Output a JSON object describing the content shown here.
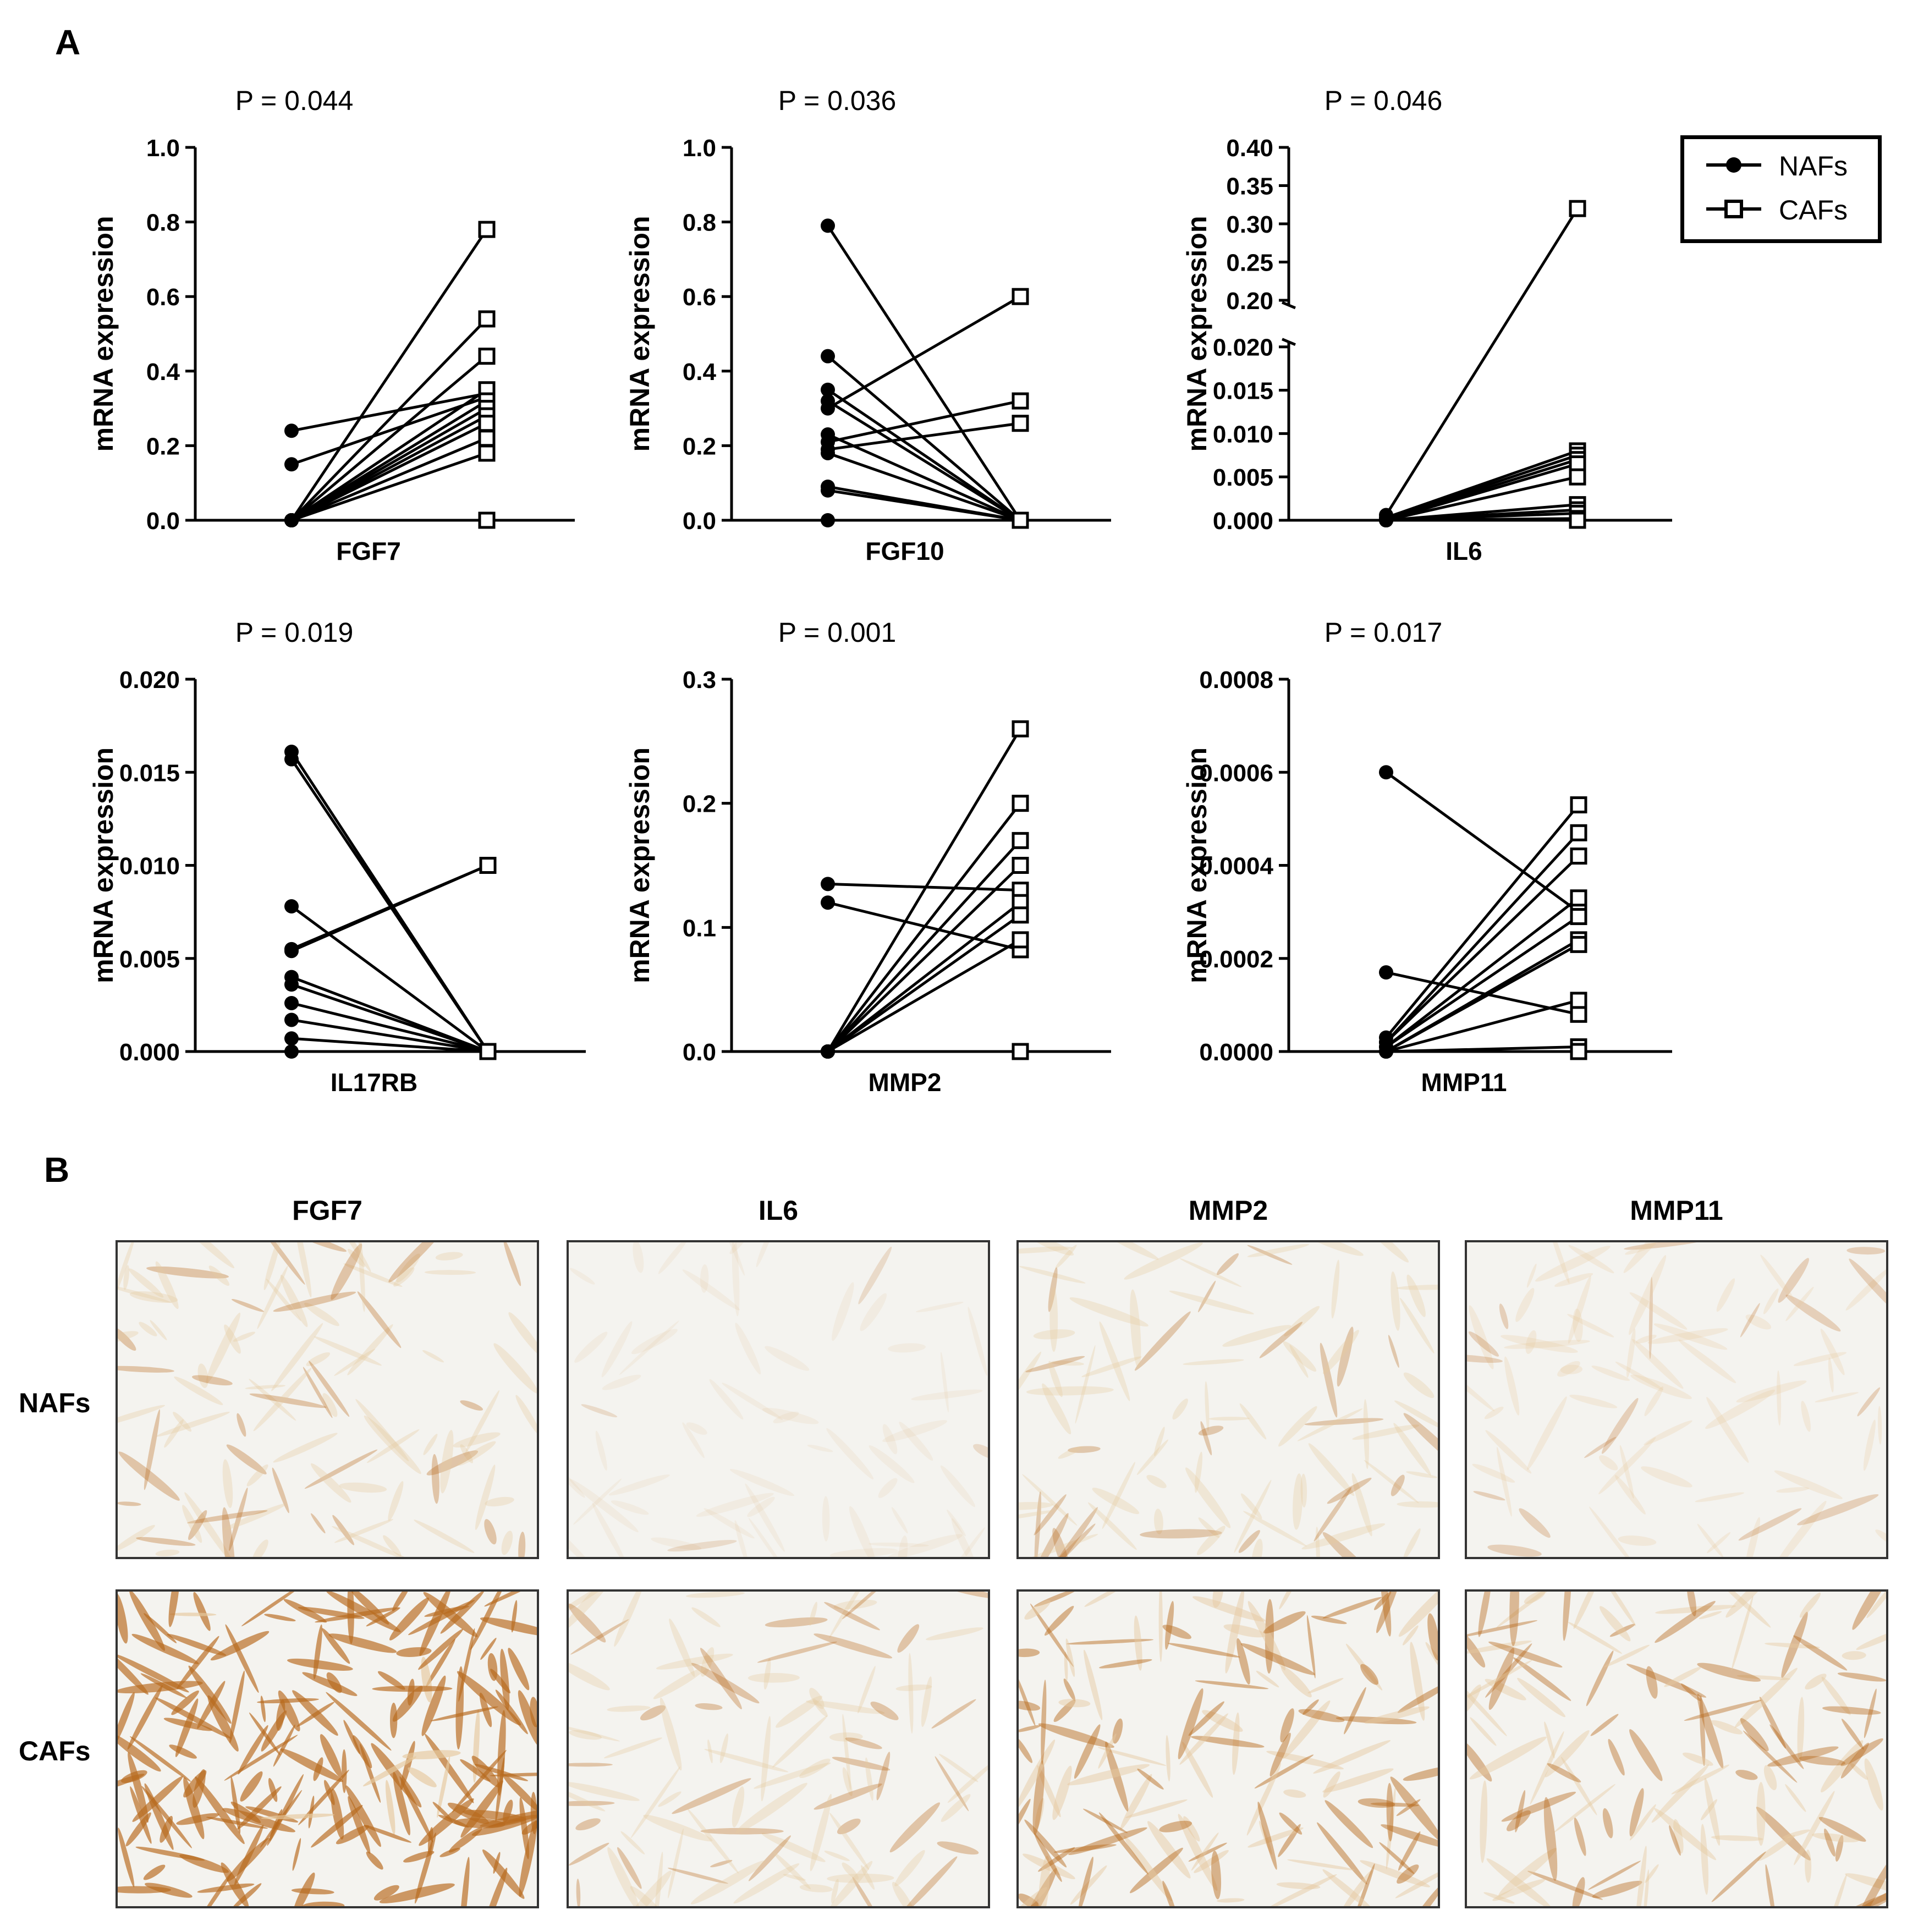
{
  "panel_a_label": "A",
  "panel_b_label": "B",
  "legend": {
    "nafs_label": "NAFs",
    "cafs_label": "CAFs"
  },
  "colors": {
    "line": "#000000",
    "stain_light": "#e6c9a0",
    "stain_dark": "#b86a1e",
    "background_photo": "#f4f3ef"
  },
  "chart_data": [
    {
      "type": "line",
      "title": "P = 0.044",
      "xlabel": "FGF7",
      "ylabel": "mRNA expression",
      "ylim": [
        0,
        1.0
      ],
      "yticks": [
        "0.0",
        "0.2",
        "0.4",
        "0.6",
        "0.8",
        "1.0"
      ],
      "pairs": [
        [
          0.24,
          0.34
        ],
        [
          0.15,
          0.33
        ],
        [
          0,
          0.78
        ],
        [
          0,
          0.54
        ],
        [
          0,
          0.44
        ],
        [
          0,
          0.35
        ],
        [
          0,
          0.32
        ],
        [
          0,
          0.3
        ],
        [
          0,
          0.28
        ],
        [
          0,
          0.26
        ],
        [
          0,
          0.22
        ],
        [
          0,
          0.18
        ],
        [
          0,
          0.0
        ]
      ]
    },
    {
      "type": "line",
      "title": "P = 0.036",
      "xlabel": "FGF10",
      "ylabel": "mRNA expression",
      "ylim": [
        0,
        1.0
      ],
      "yticks": [
        "0.0",
        "0.2",
        "0.4",
        "0.6",
        "0.8",
        "1.0"
      ],
      "pairs": [
        [
          0.79,
          0.0
        ],
        [
          0.44,
          0.0
        ],
        [
          0.35,
          0.0
        ],
        [
          0.32,
          0.0
        ],
        [
          0.3,
          0.6
        ],
        [
          0.23,
          0.0
        ],
        [
          0.21,
          0.32
        ],
        [
          0.19,
          0.26
        ],
        [
          0.18,
          0.0
        ],
        [
          0.09,
          0.0
        ],
        [
          0.08,
          0.0
        ],
        [
          0.0,
          0.0
        ]
      ]
    },
    {
      "type": "line",
      "title": "P = 0.046",
      "xlabel": "IL6",
      "ylabel": "mRNA expression",
      "ylim": [
        0,
        0.4
      ],
      "axis_break": [
        0.02,
        0.2
      ],
      "yticks_lower": [
        "0.000",
        "0.005",
        "0.010",
        "0.015",
        "0.020"
      ],
      "yticks_upper": [
        "0.20",
        "0.25",
        "0.30",
        "0.35",
        "0.40"
      ],
      "pairs": [
        [
          0.0006,
          0.32
        ],
        [
          0.0003,
          0.008
        ],
        [
          0.0002,
          0.0075
        ],
        [
          0.0001,
          0.007
        ],
        [
          0.0,
          0.0065
        ],
        [
          0.0,
          0.005
        ],
        [
          0.0,
          0.0018
        ],
        [
          0.0,
          0.0012
        ],
        [
          0.0,
          0.0008
        ],
        [
          0.0,
          0.0002
        ],
        [
          0.0,
          0.0
        ]
      ]
    },
    {
      "type": "line",
      "title": "P = 0.019",
      "xlabel": "IL17RB",
      "ylabel": "mRNA expression",
      "ylim": [
        0,
        0.02
      ],
      "yticks": [
        "0.000",
        "0.005",
        "0.010",
        "0.015",
        "0.020"
      ],
      "pairs": [
        [
          0.0161,
          0.0
        ],
        [
          0.0157,
          0.0
        ],
        [
          0.0078,
          0.0
        ],
        [
          0.0055,
          0.01
        ],
        [
          0.0054,
          0.01
        ],
        [
          0.004,
          0.0
        ],
        [
          0.0036,
          0.0
        ],
        [
          0.0026,
          0.0
        ],
        [
          0.0017,
          0.0
        ],
        [
          0.0007,
          0.0
        ],
        [
          0.0,
          0.0
        ]
      ]
    },
    {
      "type": "line",
      "title": "P = 0.001",
      "xlabel": "MMP2",
      "ylabel": "mRNA expression",
      "ylim": [
        0,
        0.3
      ],
      "yticks": [
        "0.0",
        "0.1",
        "0.2",
        "0.3"
      ],
      "pairs": [
        [
          0.135,
          0.13
        ],
        [
          0.12,
          0.082
        ],
        [
          0.0,
          0.26
        ],
        [
          0.0,
          0.2
        ],
        [
          0.0,
          0.17
        ],
        [
          0.0,
          0.15
        ],
        [
          0.0,
          0.12
        ],
        [
          0.0,
          0.11
        ],
        [
          0.0,
          0.09
        ],
        [
          0.0,
          0.0
        ]
      ]
    },
    {
      "type": "line",
      "title": "P = 0.017",
      "xlabel": "MMP11",
      "ylabel": "mRNA expression",
      "ylim": [
        0,
        0.0008
      ],
      "yticks": [
        "0.0000",
        "0.0002",
        "0.0004",
        "0.0006",
        "0.0008"
      ],
      "pairs": [
        [
          0.0006,
          0.0003
        ],
        [
          0.00017,
          8e-05
        ],
        [
          3e-05,
          0.00053
        ],
        [
          2e-05,
          0.00047
        ],
        [
          2e-05,
          0.00042
        ],
        [
          1e-05,
          0.00033
        ],
        [
          1e-05,
          0.00029
        ],
        [
          0.0,
          0.00024
        ],
        [
          0.0,
          0.00023
        ],
        [
          0.0,
          0.00011
        ],
        [
          0.0,
          1e-05
        ],
        [
          0.0,
          0.0
        ]
      ]
    }
  ],
  "panel_b": {
    "columns": [
      "FGF7",
      "IL6",
      "MMP2",
      "MMP11"
    ],
    "rows": [
      "NAFs",
      "CAFs"
    ],
    "intensity": [
      [
        0.35,
        0.05,
        0.3,
        0.2
      ],
      [
        0.95,
        0.35,
        0.6,
        0.5
      ]
    ]
  }
}
